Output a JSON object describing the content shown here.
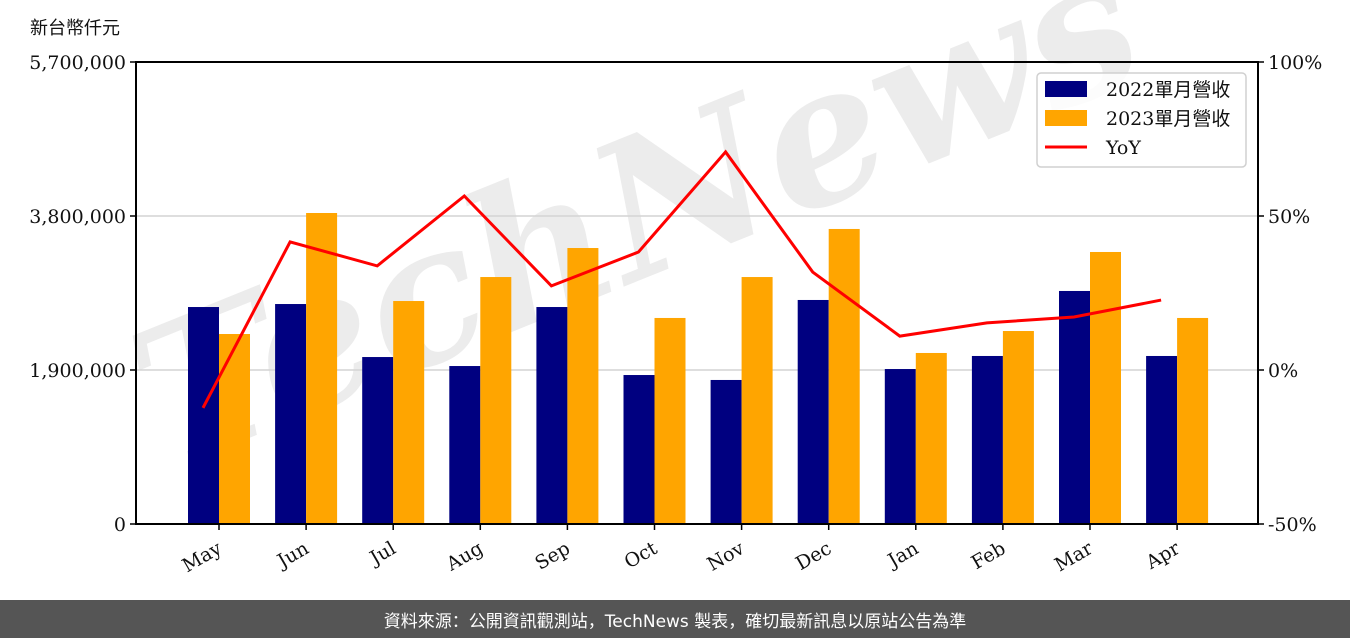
{
  "unit_label": "新台幣仟元",
  "footer": {
    "source_text": "資料來源：公開資訊觀測站，TechNews 製表，確切最新訊息以原站公告為準"
  },
  "watermark": "TechNews",
  "colors": {
    "series_2022": "#000080",
    "series_2023": "#FFA500",
    "yoy": "#FF0000",
    "grid": "#d3d3d3",
    "footer_bg": "#555555"
  },
  "chart_data": {
    "type": "bar",
    "title": "",
    "xlabel": "",
    "ylabel": "新台幣仟元",
    "ylim": [
      0,
      5700000
    ],
    "y2lim": [
      -50,
      100
    ],
    "yticks": [
      "0",
      "1,900,000",
      "3,800,000",
      "5,700,000"
    ],
    "y2ticks": [
      "-50%",
      "0%",
      "50%",
      "100%"
    ],
    "grid": true,
    "legend_position": "upper right",
    "categories": [
      "May",
      "Jun",
      "Jul",
      "Aug",
      "Sep",
      "Oct",
      "Nov",
      "Dec",
      "Jan",
      "Feb",
      "Mar",
      "Apr"
    ],
    "series": [
      {
        "name": "2022單月營收",
        "type": "bar",
        "axis": "left",
        "values": [
          2677000,
          2714000,
          2060000,
          1949000,
          2677000,
          1838000,
          1777000,
          2764000,
          1912000,
          2073000,
          2875000,
          2073000
        ]
      },
      {
        "name": "2023單月營收",
        "type": "bar",
        "axis": "left",
        "values": [
          2344000,
          3837000,
          2751000,
          3047000,
          3405000,
          2542000,
          3047000,
          3640000,
          2110000,
          2381000,
          3356000,
          2542000
        ]
      },
      {
        "name": "YoY",
        "type": "line",
        "axis": "right",
        "values": [
          -12.3,
          41.6,
          33.8,
          56.5,
          27.3,
          38.3,
          70.8,
          31.8,
          11.0,
          15.3,
          17.2,
          22.7
        ]
      }
    ]
  }
}
